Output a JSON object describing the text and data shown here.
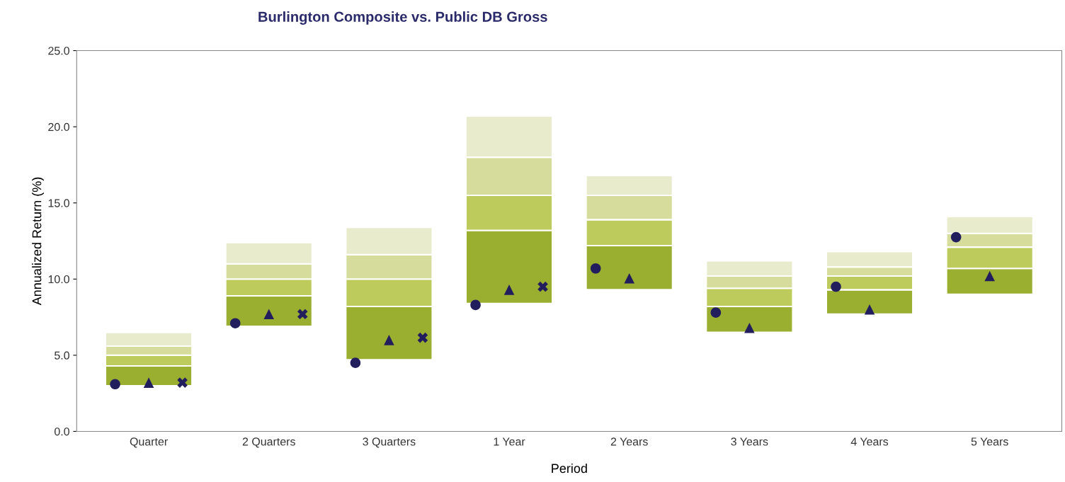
{
  "chart_data": {
    "type": "bar",
    "title": "Burlington Composite vs. Public DB Gross",
    "xlabel": "Period",
    "ylabel": "Annualized Return (%)",
    "categories": [
      "Quarter",
      "2 Quarters",
      "3 Quarters",
      "1 Year",
      "2 Years",
      "3 Years",
      "4 Years",
      "5 Years"
    ],
    "series": [
      {
        "color": "#9aae30",
        "base": [
          3.0,
          6.9,
          4.7,
          8.4,
          9.3,
          6.5,
          7.7,
          9.0
        ],
        "values": [
          1.3,
          2.0,
          3.5,
          4.8,
          2.9,
          1.7,
          1.6,
          1.7
        ]
      },
      {
        "color": "#bccb5c",
        "base": [
          4.3,
          8.9,
          8.2,
          13.2,
          12.2,
          8.2,
          9.3,
          10.7
        ],
        "values": [
          0.7,
          1.1,
          1.8,
          2.3,
          1.7,
          1.2,
          0.9,
          1.4
        ]
      },
      {
        "color": "#d6dc9c",
        "base": [
          5.0,
          10.0,
          10.0,
          15.5,
          13.9,
          9.4,
          10.2,
          12.1
        ],
        "values": [
          0.6,
          1.0,
          1.6,
          2.5,
          1.6,
          0.8,
          0.6,
          0.9
        ]
      },
      {
        "color": "#e9ebcd",
        "base": [
          5.6,
          11.0,
          11.6,
          18.0,
          15.5,
          10.2,
          10.8,
          13.0
        ],
        "values": [
          0.9,
          1.4,
          1.8,
          2.7,
          1.3,
          1.0,
          1.0,
          1.1
        ]
      },
      {
        "type": "scatter",
        "marker": "circle",
        "color": "#221d5c",
        "x": [
          "Quarter",
          "2 Quarters",
          "3 Quarters",
          "1 Year",
          "2 Years",
          "3 Years",
          "4 Years",
          "5 Years"
        ],
        "values": [
          3.1,
          7.1,
          4.5,
          8.3,
          10.7,
          7.8,
          9.5,
          12.75
        ]
      },
      {
        "type": "scatter",
        "marker": "triangle",
        "color": "#221d5c",
        "x": [
          "Quarter",
          "2 Quarters",
          "3 Quarters",
          "1 Year",
          "2 Years",
          "3 Years",
          "4 Years",
          "5 Years"
        ],
        "values": [
          3.2,
          7.7,
          6.0,
          9.3,
          10.05,
          6.8,
          8.0,
          10.2
        ]
      },
      {
        "type": "scatter",
        "marker": "cross",
        "color": "#221d5c",
        "x": [
          "Quarter",
          "2 Quarters",
          "3 Quarters",
          "1 Year",
          "2 Years",
          "3 Years",
          "4 Years",
          "5 Years"
        ],
        "values": [
          3.2,
          7.7,
          6.15,
          9.5,
          null,
          null,
          null,
          null
        ]
      }
    ],
    "ylim": [
      0,
      25
    ],
    "yticks": [
      {
        "value": 0,
        "label": "0.0"
      },
      {
        "value": 5,
        "label": "5.0"
      },
      {
        "value": 10,
        "label": "10.0"
      },
      {
        "value": 15,
        "label": "15.0"
      },
      {
        "value": 20,
        "label": "20.0"
      },
      {
        "value": 25,
        "label": "25.0"
      }
    ],
    "grid": false,
    "legend": false
  }
}
